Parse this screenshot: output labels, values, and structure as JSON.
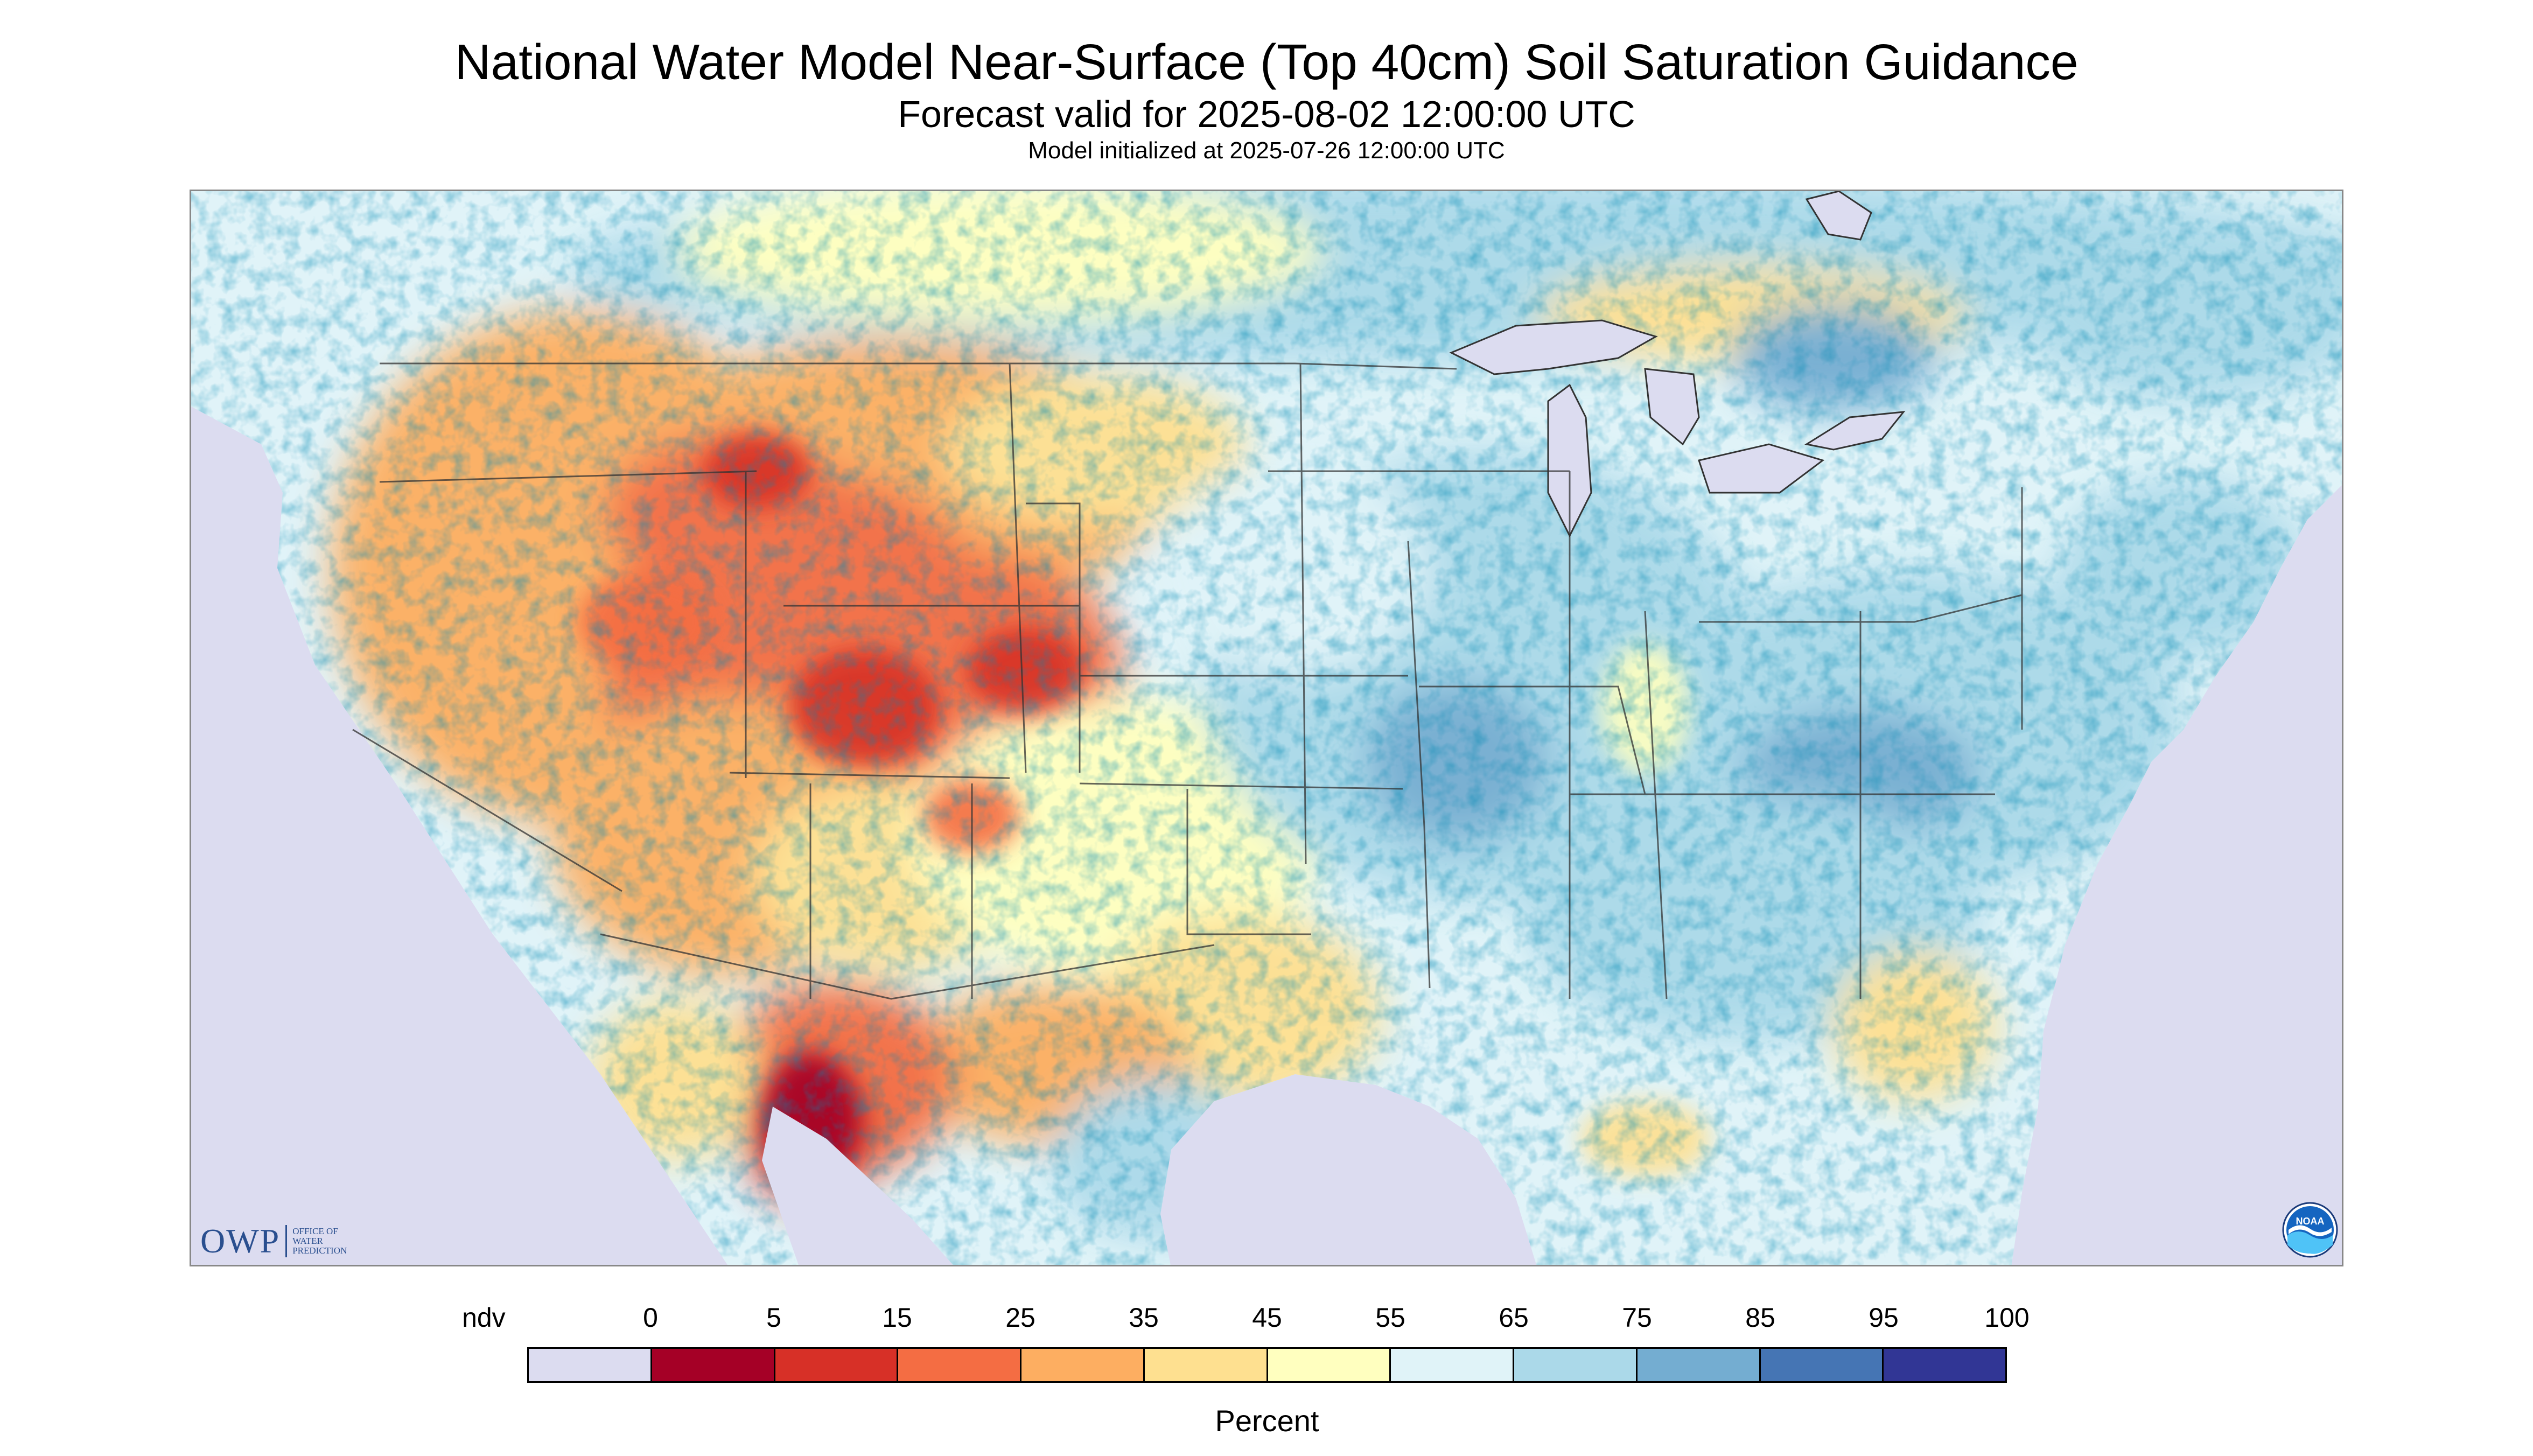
{
  "header": {
    "title": "National Water Model Near-Surface (Top 40cm) Soil Saturation Guidance",
    "subtitle": "Forecast valid for 2025-08-02 12:00:00 UTC",
    "init_text": "Model initialized at 2025-07-26 12:00:00 UTC"
  },
  "logos": {
    "owp": {
      "letters": "OWP",
      "line1": "Office of",
      "line2": "Water",
      "line3": "Prediction"
    },
    "noaa": {
      "text": "NOAA"
    }
  },
  "legend": {
    "labels": [
      "ndv",
      "0",
      "5",
      "15",
      "25",
      "35",
      "45",
      "55",
      "65",
      "75",
      "85",
      "95",
      "100"
    ],
    "colors": [
      "#dcdcf0",
      "#a50026",
      "#d73027",
      "#f46d43",
      "#fdae61",
      "#fee090",
      "#ffffbf",
      "#e0f3f8",
      "#abd9e9",
      "#74add1",
      "#4575b4",
      "#313695"
    ],
    "unit": "Percent"
  },
  "map_colors": {
    "no_data": "#dcdcf0",
    "water": "#dcdcf0",
    "boundary": "#333333"
  }
}
